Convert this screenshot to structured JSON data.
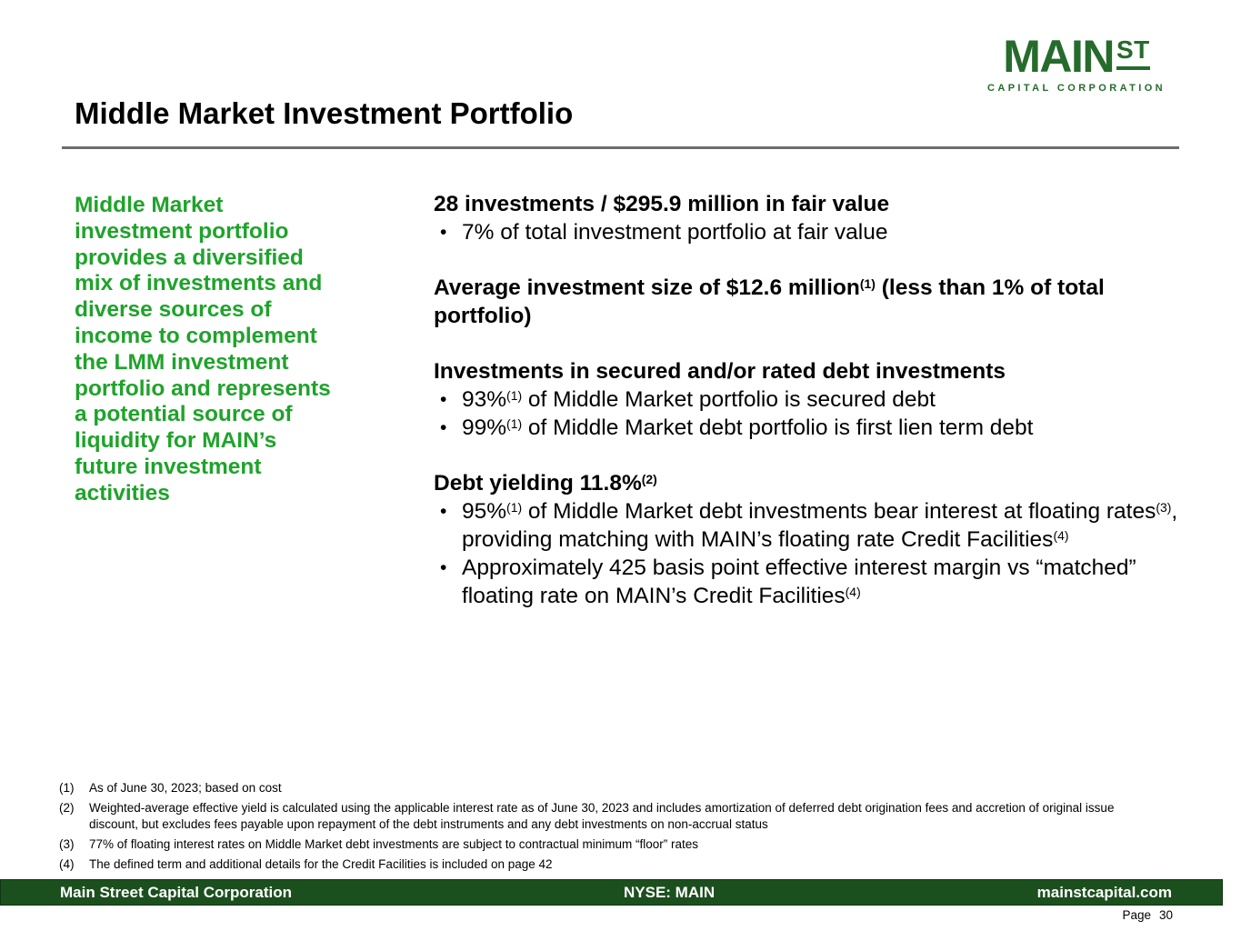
{
  "colors": {
    "accent_green": "#1fa32b",
    "logo_green": "#266b2c",
    "footer_bar_green": "#1c4f1e",
    "title_rule_gray": "#6e6e6e"
  },
  "logo": {
    "word": "MAIN",
    "superscript": "ST",
    "tagline": "CAPITAL CORPORATION"
  },
  "header": {
    "title": "Middle Market Investment Portfolio"
  },
  "callout": {
    "lines": [
      "Middle Market",
      "investment portfolio",
      "provides a diversified",
      "mix of investments and",
      "diverse sources of",
      "income to complement",
      "the LMM investment",
      "portfolio and represents",
      "a potential source of",
      "liquidity for MAIN’s",
      "future investment",
      "activities"
    ]
  },
  "main": {
    "sections": [
      {
        "heading": [
          {
            "t": "28 investments / $295.9 million in fair value"
          }
        ],
        "bullets": [
          [
            {
              "t": "7% of total investment portfolio at fair value"
            }
          ]
        ]
      },
      {
        "heading": [
          {
            "t": "Average investment size of $12.6 million"
          },
          {
            "sup": "(1)"
          },
          {
            "t": " (less than 1% of total portfolio)"
          }
        ],
        "bullets": []
      },
      {
        "heading": [
          {
            "t": "Investments in secured and/or rated debt investments"
          }
        ],
        "bullets": [
          [
            {
              "t": "93%"
            },
            {
              "sup": "(1)"
            },
            {
              "t": " of Middle Market portfolio is secured debt"
            }
          ],
          [
            {
              "t": "99%"
            },
            {
              "sup": "(1)"
            },
            {
              "t": " of Middle Market debt portfolio is first lien term debt"
            }
          ]
        ]
      },
      {
        "heading": [
          {
            "t": "Debt yielding 11.8%"
          },
          {
            "sup": "(2)"
          }
        ],
        "bullets": [
          [
            {
              "t": "95%"
            },
            {
              "sup": "(1)"
            },
            {
              "t": " of Middle Market debt investments bear interest at floating rates"
            },
            {
              "sup": "(3)"
            },
            {
              "t": ", providing matching with MAIN’s floating rate Credit Facilities"
            },
            {
              "sup": "(4)"
            }
          ],
          [
            {
              "t": "Approximately 425 basis point effective interest margin vs “matched” floating rate on MAIN’s Credit Facilities"
            },
            {
              "sup": "(4)"
            }
          ]
        ]
      }
    ]
  },
  "footnotes": [
    {
      "num": "(1)",
      "text": "As of June 30, 2023; based on cost"
    },
    {
      "num": "(2)",
      "text": "Weighted-average effective yield is calculated using the applicable interest rate as of June 30, 2023 and includes amortization of deferred debt origination fees and accretion of original issue discount, but excludes fees payable upon repayment of the debt instruments and any debt investments on non-accrual status"
    },
    {
      "num": "(3)",
      "text": "77% of floating interest rates on Middle Market debt investments are subject to contractual minimum “floor” rates"
    },
    {
      "num": "(4)",
      "text": "The defined term and additional details for the Credit Facilities is included on page 42"
    }
  ],
  "footer": {
    "company": "Main Street Capital Corporation",
    "ticker": "NYSE: MAIN",
    "website": "mainstcapital.com"
  },
  "page": {
    "label": "Page",
    "number": "30"
  }
}
